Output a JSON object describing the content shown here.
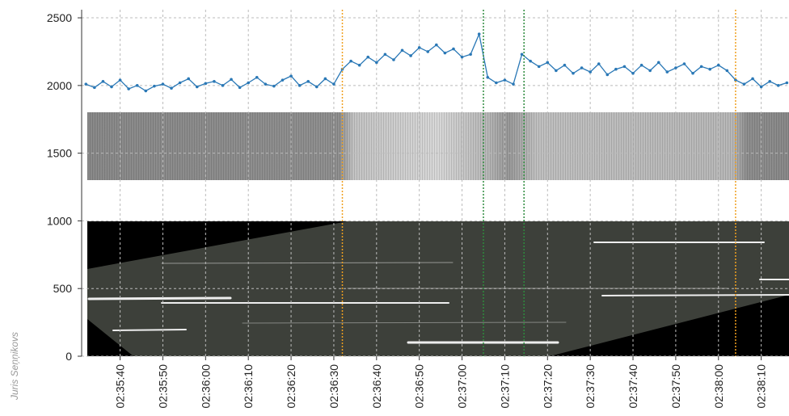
{
  "chart_data": {
    "type": "line",
    "credit": "Juris Seņņikovs",
    "x": [
      9332,
      9334,
      9336,
      9338,
      9340,
      9342,
      9344,
      9346,
      9348,
      9350,
      9352,
      9354,
      9356,
      9358,
      9360,
      9362,
      9364,
      9366,
      9368,
      9370,
      9372,
      9374,
      9376,
      9378,
      9380,
      9382,
      9384,
      9386,
      9388,
      9390,
      9392,
      9394,
      9396,
      9398,
      9400,
      9402,
      9404,
      9406,
      9408,
      9410,
      9412,
      9414,
      9416,
      9418,
      9420,
      9422,
      9424,
      9426,
      9428,
      9430,
      9432,
      9434,
      9436,
      9438,
      9440,
      9442,
      9444,
      9446,
      9448,
      9450,
      9452,
      9454,
      9456,
      9458,
      9460,
      9462,
      9464,
      9466,
      9468,
      9470,
      9472,
      9474,
      9476,
      9478,
      9480,
      9482,
      9484,
      9486,
      9488,
      9490,
      9492,
      9494,
      9496
    ],
    "series": [
      {
        "color": "#2a78b6",
        "values": [
          2010,
          1985,
          2030,
          1990,
          2040,
          1975,
          2000,
          1960,
          1995,
          2010,
          1980,
          2020,
          2050,
          1990,
          2015,
          2030,
          2000,
          2045,
          1985,
          2020,
          2060,
          2010,
          1995,
          2040,
          2070,
          2000,
          2030,
          1990,
          2050,
          2010,
          2120,
          2180,
          2150,
          2210,
          2170,
          2230,
          2190,
          2260,
          2220,
          2280,
          2250,
          2300,
          2240,
          2270,
          2210,
          2230,
          2380,
          2060,
          2020,
          2040,
          2010,
          2230,
          2180,
          2140,
          2170,
          2110,
          2150,
          2090,
          2130,
          2100,
          2160,
          2080,
          2120,
          2140,
          2090,
          2150,
          2110,
          2170,
          2100,
          2130,
          2160,
          2090,
          2140,
          2120,
          2150,
          2110,
          2040,
          2010,
          2050,
          1990,
          2030,
          2000,
          2020
        ]
      }
    ],
    "xlim": [
      9331,
      9496.5
    ],
    "xticks": [
      {
        "value": 9340,
        "label": "02:35:40"
      },
      {
        "value": 9350,
        "label": "02:35:50"
      },
      {
        "value": 9360,
        "label": "02:36:00"
      },
      {
        "value": 9370,
        "label": "02:36:10"
      },
      {
        "value": 9380,
        "label": "02:36:20"
      },
      {
        "value": 9390,
        "label": "02:36:30"
      },
      {
        "value": 9400,
        "label": "02:36:40"
      },
      {
        "value": 9410,
        "label": "02:36:50"
      },
      {
        "value": 9420,
        "label": "02:37:00"
      },
      {
        "value": 9430,
        "label": "02:37:10"
      },
      {
        "value": 9440,
        "label": "02:37:20"
      },
      {
        "value": 9450,
        "label": "02:37:30"
      },
      {
        "value": 9460,
        "label": "02:37:40"
      },
      {
        "value": 9470,
        "label": "02:37:50"
      },
      {
        "value": 9480,
        "label": "02:38:00"
      },
      {
        "value": 9490,
        "label": "02:38:10"
      }
    ],
    "ylim": [
      0,
      2560
    ],
    "yticks": [
      0,
      500,
      1000,
      1500,
      2000,
      2500
    ],
    "grid": true,
    "vlines": [
      {
        "x": 9392,
        "color": "#f0a020"
      },
      {
        "x": 9425,
        "color": "#2e8b3e"
      },
      {
        "x": 9434.5,
        "color": "#2e8b3e"
      },
      {
        "x": 9484,
        "color": "#f0a020"
      }
    ]
  }
}
